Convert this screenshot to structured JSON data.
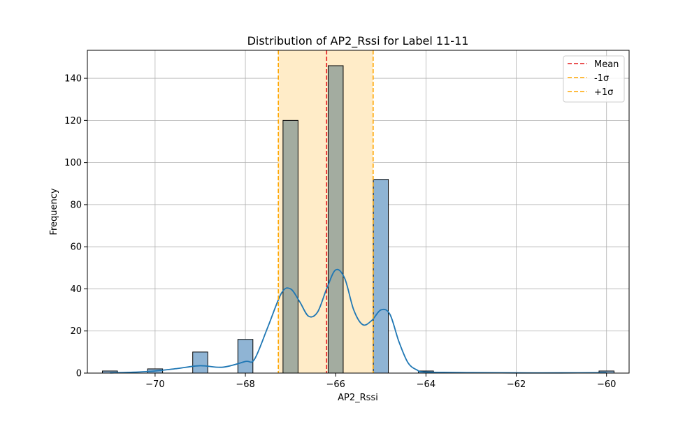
{
  "chart_data": {
    "type": "bar",
    "title": "Distribution of AP2_Rssi for Label 11-11",
    "xlabel": "AP2_Rssi",
    "ylabel": "Frequency",
    "xlim": [
      -71.5,
      -59.5
    ],
    "ylim": [
      0,
      153.3
    ],
    "xticks": [
      -70,
      -68,
      -66,
      -64,
      -62,
      -60
    ],
    "yticks": [
      0,
      20,
      40,
      60,
      80,
      100,
      120,
      140
    ],
    "grid": true,
    "bin_width": 0.333,
    "bars": [
      {
        "x": -71.0,
        "count": 1
      },
      {
        "x": -70.0,
        "count": 2
      },
      {
        "x": -69.0,
        "count": 10
      },
      {
        "x": -68.0,
        "count": 16
      },
      {
        "x": -67.0,
        "count": 120
      },
      {
        "x": -66.0,
        "count": 146
      },
      {
        "x": -65.0,
        "count": 92
      },
      {
        "x": -64.0,
        "count": 1
      },
      {
        "x": -60.0,
        "count": 1
      }
    ],
    "kde": {
      "x": [
        -71.0,
        -70.5,
        -70.0,
        -69.5,
        -69.0,
        -68.5,
        -68.0,
        -67.8,
        -67.5,
        -67.2,
        -67.0,
        -66.8,
        -66.6,
        -66.4,
        -66.2,
        -66.0,
        -65.8,
        -65.6,
        -65.4,
        -65.2,
        -65.0,
        -64.8,
        -64.6,
        -64.4,
        -64.2,
        -64.0,
        -63.0,
        -62.0,
        -61.0,
        -60.0
      ],
      "y": [
        0.1,
        0.4,
        1.0,
        2.2,
        3.5,
        2.8,
        5.5,
        6.5,
        22.0,
        38.0,
        40.0,
        34.0,
        27.0,
        29.0,
        40.0,
        49.0,
        45.0,
        30.0,
        23.0,
        25.0,
        30.0,
        28.0,
        15.0,
        5.0,
        1.5,
        0.5,
        0.2,
        0.1,
        0.1,
        0.2
      ]
    },
    "mean": -66.2,
    "sigma_band": [
      -67.27,
      -65.17
    ],
    "legend": {
      "placement": "top-right",
      "entries": [
        {
          "label": "Mean",
          "color": "#e31a1c",
          "style": "dashed"
        },
        {
          "label": "-1σ",
          "color": "#ffa500",
          "style": "dashed"
        },
        {
          "label": "+1σ",
          "color": "#ffa500",
          "style": "dashed"
        }
      ]
    },
    "colors": {
      "bar_fill": "#8fb4d4",
      "bar_fill_in_band": "#a3aca0",
      "bar_edge": "#000000",
      "kde_line": "#1f77b4",
      "band_fill": "#ffecc8",
      "mean_line": "#e31a1c",
      "sigma_line": "#ffa500",
      "grid": "#b0b0b0"
    }
  }
}
